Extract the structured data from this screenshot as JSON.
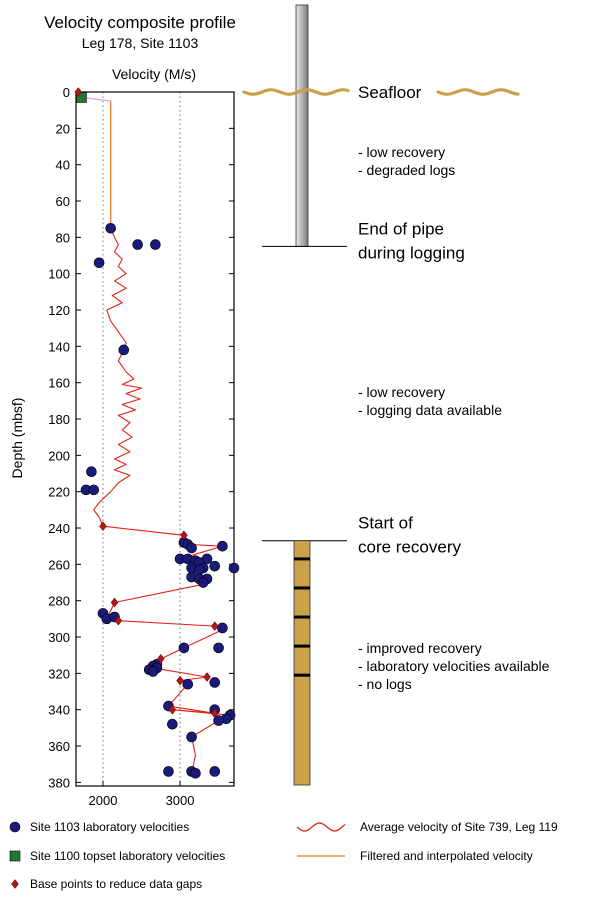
{
  "chart_data": {
    "type": "scatter",
    "title": "Velocity composite profile",
    "subtitle": "Leg 178, Site 1103",
    "xlabel": "Velocity (M/s)",
    "ylabel": "Depth (mbsf)",
    "xlim": [
      1650,
      3700
    ],
    "ylim": [
      0,
      382
    ],
    "y_inverted": true,
    "grid": "vertical-dotted",
    "x_ticks": [
      {
        "value": 2000,
        "label": "2000"
      },
      {
        "value": 3000,
        "label": "3000"
      }
    ],
    "y_ticks": [
      {
        "value": 0,
        "label": "0"
      },
      {
        "value": 20,
        "label": "20"
      },
      {
        "value": 40,
        "label": "40"
      },
      {
        "value": 60,
        "label": "60"
      },
      {
        "value": 80,
        "label": "80"
      },
      {
        "value": 100,
        "label": "100"
      },
      {
        "value": 120,
        "label": "120"
      },
      {
        "value": 140,
        "label": "140"
      },
      {
        "value": 160,
        "label": "160"
      },
      {
        "value": 180,
        "label": "180"
      },
      {
        "value": 200,
        "label": "200"
      },
      {
        "value": 220,
        "label": "220"
      },
      {
        "value": 240,
        "label": "240"
      },
      {
        "value": 260,
        "label": "260"
      },
      {
        "value": 280,
        "label": "280"
      },
      {
        "value": 300,
        "label": "300"
      },
      {
        "value": 320,
        "label": "320"
      },
      {
        "value": 340,
        "label": "340"
      },
      {
        "value": 360,
        "label": "360"
      },
      {
        "value": 380,
        "label": "380"
      }
    ],
    "series": [
      {
        "name": "Site 1103 laboratory velocities",
        "marker": "circle",
        "color": "#1a1a7a",
        "points": [
          [
            2100,
            75
          ],
          [
            2450,
            84
          ],
          [
            2680,
            84
          ],
          [
            1950,
            94
          ],
          [
            2270,
            142
          ],
          [
            1850,
            209
          ],
          [
            1780,
            219
          ],
          [
            1880,
            219
          ],
          [
            3050,
            248
          ],
          [
            3100,
            249
          ],
          [
            3550,
            250
          ],
          [
            3150,
            251
          ],
          [
            3000,
            257
          ],
          [
            3100,
            257
          ],
          [
            3200,
            258
          ],
          [
            3350,
            257
          ],
          [
            3250,
            259
          ],
          [
            3450,
            261
          ],
          [
            3700,
            262
          ],
          [
            3150,
            262
          ],
          [
            3300,
            262
          ],
          [
            3250,
            263
          ],
          [
            3150,
            267
          ],
          [
            3250,
            268
          ],
          [
            3350,
            268
          ],
          [
            3300,
            270
          ],
          [
            2000,
            287
          ],
          [
            2050,
            290
          ],
          [
            2150,
            289
          ],
          [
            3050,
            306
          ],
          [
            3550,
            295
          ],
          [
            2700,
            315
          ],
          [
            2650,
            316
          ],
          [
            2700,
            317
          ],
          [
            2600,
            318
          ],
          [
            2650,
            319
          ],
          [
            3500,
            306
          ],
          [
            3100,
            326
          ],
          [
            3450,
            325
          ],
          [
            2850,
            338
          ],
          [
            3450,
            340
          ],
          [
            3650,
            343
          ],
          [
            3600,
            345
          ],
          [
            3500,
            346
          ],
          [
            2900,
            348
          ],
          [
            3150,
            355
          ],
          [
            2850,
            374
          ],
          [
            3150,
            374
          ],
          [
            3200,
            375
          ],
          [
            3450,
            374
          ]
        ]
      },
      {
        "name": "Site 1100 topset laboratory velocities",
        "marker": "square",
        "color": "#1f7a2e",
        "points": [
          [
            1720,
            3
          ]
        ]
      },
      {
        "name": "Base points to reduce data gaps",
        "marker": "diamond",
        "color": "#b01818",
        "points": [
          [
            1680,
            0
          ],
          [
            2000,
            239
          ],
          [
            3050,
            244
          ],
          [
            2150,
            281
          ],
          [
            2200,
            291
          ],
          [
            3450,
            294
          ],
          [
            2750,
            312
          ],
          [
            3350,
            322
          ],
          [
            3000,
            324
          ],
          [
            3450,
            342
          ],
          [
            2900,
            340
          ]
        ]
      },
      {
        "name": "Average velocity of Site 739, Leg 119",
        "type": "line",
        "color": "#e2231a",
        "points": [
          [
            2100,
            75
          ],
          [
            2150,
            80
          ],
          [
            2200,
            84
          ],
          [
            2150,
            88
          ],
          [
            2250,
            92
          ],
          [
            2200,
            96
          ],
          [
            2300,
            100
          ],
          [
            2150,
            104
          ],
          [
            2300,
            108
          ],
          [
            2120,
            112
          ],
          [
            2250,
            116
          ],
          [
            2050,
            120
          ],
          [
            2100,
            126
          ],
          [
            2200,
            132
          ],
          [
            2300,
            138
          ],
          [
            2270,
            142
          ],
          [
            2200,
            148
          ],
          [
            2300,
            154
          ],
          [
            2400,
            158
          ],
          [
            2250,
            161
          ],
          [
            2500,
            163
          ],
          [
            2300,
            166
          ],
          [
            2480,
            169
          ],
          [
            2250,
            172
          ],
          [
            2420,
            175
          ],
          [
            2200,
            178
          ],
          [
            2350,
            182
          ],
          [
            2250,
            186
          ],
          [
            2380,
            190
          ],
          [
            2200,
            194
          ],
          [
            2350,
            198
          ],
          [
            2150,
            202
          ],
          [
            2300,
            205
          ],
          [
            2150,
            208
          ],
          [
            2350,
            211
          ],
          [
            2200,
            215
          ],
          [
            2100,
            220
          ],
          [
            1950,
            226
          ],
          [
            1880,
            230
          ],
          [
            1950,
            234
          ],
          [
            2000,
            239
          ],
          [
            3050,
            244
          ],
          [
            3100,
            249
          ],
          [
            3550,
            250
          ],
          [
            3000,
            257
          ],
          [
            3300,
            262
          ],
          [
            3250,
            268
          ],
          [
            3300,
            271
          ],
          [
            2150,
            281
          ],
          [
            2050,
            290
          ],
          [
            2200,
            291
          ],
          [
            3450,
            294
          ],
          [
            3550,
            296
          ],
          [
            3050,
            306
          ],
          [
            2750,
            312
          ],
          [
            2650,
            317
          ],
          [
            3350,
            322
          ],
          [
            3000,
            324
          ],
          [
            3100,
            326
          ],
          [
            2850,
            338
          ],
          [
            3450,
            342
          ],
          [
            2900,
            340
          ],
          [
            3650,
            343
          ],
          [
            3500,
            346
          ],
          [
            3150,
            355
          ],
          [
            3200,
            365
          ],
          [
            3150,
            375
          ]
        ]
      },
      {
        "name": "Filtered and interpolated velocity",
        "type": "line",
        "color": "#f07a1a",
        "points": [
          [
            2100,
            5
          ],
          [
            2100,
            75
          ]
        ]
      }
    ],
    "topset_line": {
      "color": "#d4a0d4",
      "points": [
        [
          1720,
          3
        ],
        [
          2100,
          5
        ],
        [
          2100,
          75
        ]
      ]
    },
    "annotations": [
      {
        "id": "seafloor",
        "text": "Seafloor",
        "depth": 0
      },
      {
        "id": "pipe",
        "lines": [
          "End of pipe",
          "during logging"
        ],
        "depth": 85
      },
      {
        "id": "core",
        "lines": [
          "Start of",
          "core recovery"
        ],
        "depth": 247
      },
      {
        "id": "zone1",
        "lines": [
          "- low recovery",
          "- degraded logs"
        ],
        "depth": 38
      },
      {
        "id": "zone2",
        "lines": [
          "- low recovery",
          "- logging data available"
        ],
        "depth": 170
      },
      {
        "id": "zone3",
        "lines": [
          "- improved recovery",
          "- laboratory velocities available",
          "- no logs"
        ],
        "depth": 316
      }
    ],
    "column": {
      "pipe_color": "#b5b5b5",
      "core_color": "#c9a24a",
      "seafloor_color": "#c9a24a"
    },
    "legend_position": "bottom",
    "legend": {
      "left": [
        {
          "text": "Site 1103 laboratory velocities",
          "marker": "circle"
        },
        {
          "text": "Site 1100 topset laboratory velocities",
          "marker": "square"
        },
        {
          "text": "Base points to reduce data gaps",
          "marker": "diamond"
        }
      ],
      "right": [
        {
          "text": "Average velocity of Site 739, Leg 119",
          "marker": "wave"
        },
        {
          "text": "Filtered and interpolated velocity",
          "marker": "line"
        }
      ]
    }
  }
}
